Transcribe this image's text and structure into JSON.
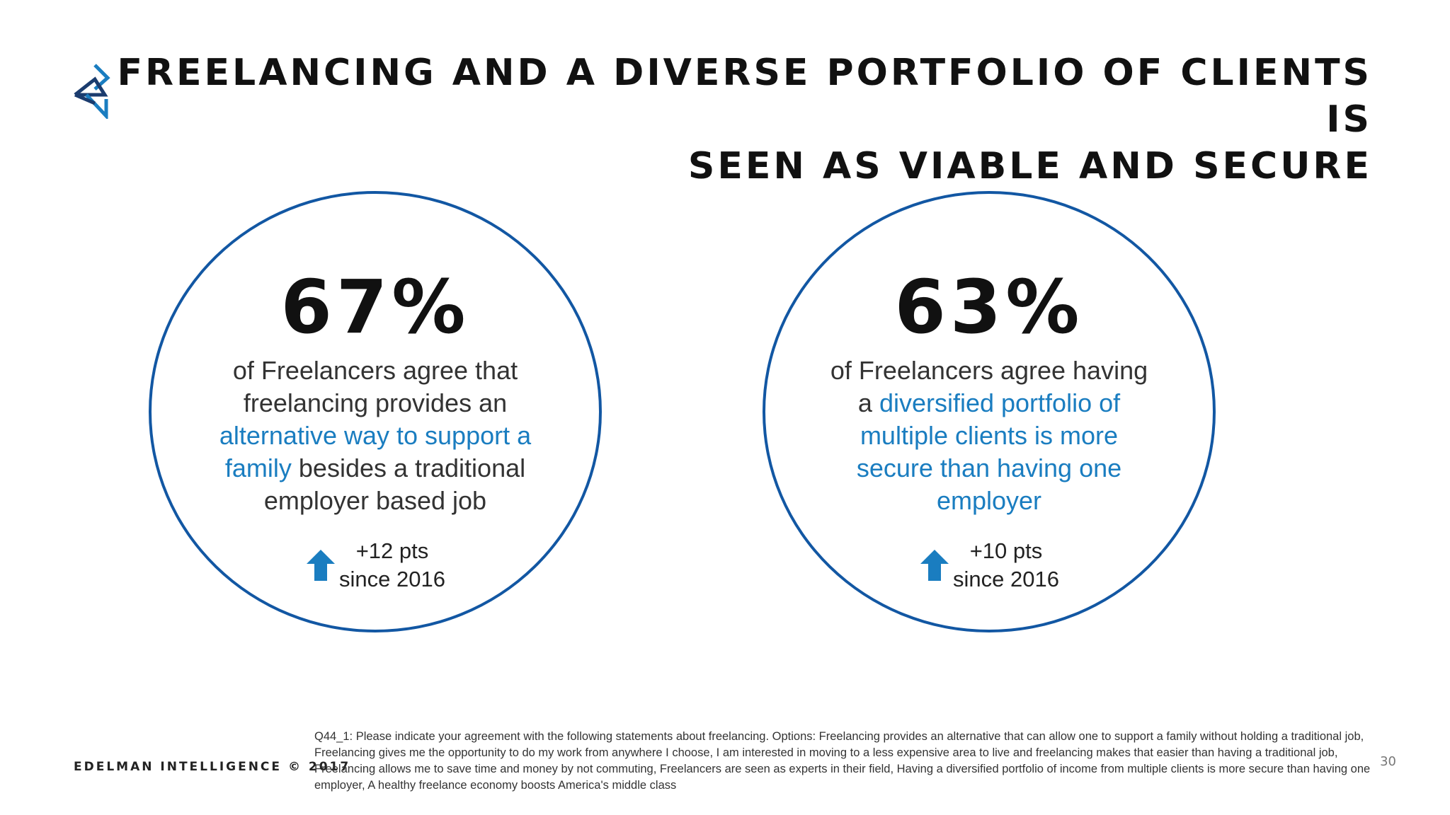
{
  "slide": {
    "title_line1": "Freelancing and a diverse portfolio of clients is",
    "title_line2": "seen as viable and secure",
    "logo_icon": "edelman-intelligence-logo-icon"
  },
  "stats": [
    {
      "percent": "67%",
      "text_before": "of Freelancers agree that freelancing provides an",
      "text_highlight": "alternative way to support a family",
      "text_after": "besides a traditional employer based job",
      "change_line1": "+12 pts",
      "change_line2": "since 2016",
      "change_icon": "up-arrow-icon"
    },
    {
      "percent": "63%",
      "text_before": "of Freelancers agree having a",
      "text_highlight": "diversified portfolio of multiple clients is more secure than having one employer",
      "text_after": "",
      "change_line1": "+10 pts",
      "change_line2": "since 2016",
      "change_icon": "up-arrow-icon"
    }
  ],
  "footer": {
    "brand": "EDELMAN INTELLIGENCE © 2017",
    "footnote": "Q44_1: Please indicate your agreement with the following statements about freelancing. Options: Freelancing provides an alternative that can allow one to support a family without holding a traditional job, Freelancing gives me the opportunity to do my work from anywhere I choose, I am interested in moving to a less expensive area to live and freelancing makes that easier than having a traditional job, Freelancing allows me to save time and money by not commuting, Freelancers are seen as experts in their field, Having a diversified portfolio of income from multiple clients is more secure than having one employer, A healthy freelance economy boosts America's middle class",
    "page_number": "30"
  },
  "colors": {
    "circle_border": "#1257a3",
    "highlight": "#1a7dc0",
    "arrow": "#1a7dc0"
  }
}
